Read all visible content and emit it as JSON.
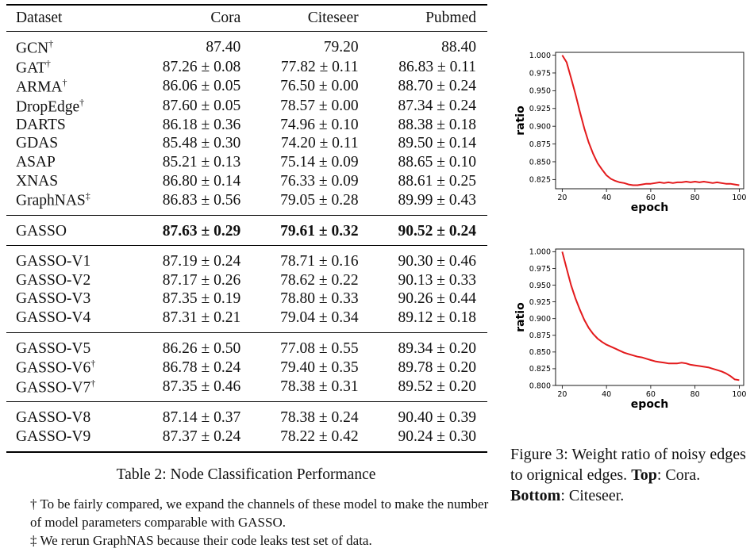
{
  "table": {
    "headers": [
      "Dataset",
      "Cora",
      "Citeseer",
      "Pubmed"
    ],
    "groups": [
      [
        {
          "name": "GCN",
          "mark": "†",
          "cora": "87.40",
          "citeseer": "79.20",
          "pubmed": "88.40"
        },
        {
          "name": "GAT",
          "mark": "†",
          "cora": "87.26 ± 0.08",
          "citeseer": "77.82 ± 0.11",
          "pubmed": "86.83 ± 0.11"
        },
        {
          "name": "ARMA",
          "mark": "†",
          "cora": "86.06 ± 0.05",
          "citeseer": "76.50 ± 0.00",
          "pubmed": "88.70 ± 0.24"
        },
        {
          "name": "DropEdge",
          "mark": "†",
          "cora": "87.60 ± 0.05",
          "citeseer": "78.57 ± 0.00",
          "pubmed": "87.34 ± 0.24"
        },
        {
          "name": "DARTS",
          "mark": "",
          "cora": "86.18 ± 0.36",
          "citeseer": "74.96 ± 0.10",
          "pubmed": "88.38 ± 0.18"
        },
        {
          "name": "GDAS",
          "mark": "",
          "cora": "85.48 ± 0.30",
          "citeseer": "74.20 ± 0.11",
          "pubmed": "89.50 ± 0.14"
        },
        {
          "name": "ASAP",
          "mark": "",
          "cora": "85.21 ± 0.13",
          "citeseer": "75.14 ± 0.09",
          "pubmed": "88.65 ± 0.10"
        },
        {
          "name": "XNAS",
          "mark": "",
          "cora": "86.80 ± 0.14",
          "citeseer": "76.33 ± 0.09",
          "pubmed": "88.61 ± 0.25"
        },
        {
          "name": "GraphNAS",
          "mark": "‡",
          "cora": "86.83 ± 0.56",
          "citeseer": "79.05 ± 0.28",
          "pubmed": "89.99 ± 0.43"
        }
      ],
      [
        {
          "name": "GASSO",
          "mark": "",
          "cora": "87.63 ± 0.29",
          "citeseer": "79.61 ± 0.32",
          "pubmed": "90.52 ± 0.24",
          "bold": true
        }
      ],
      [
        {
          "name": "GASSO-V1",
          "mark": "",
          "cora": "87.19 ± 0.24",
          "citeseer": "78.71 ± 0.16",
          "pubmed": "90.30 ± 0.46"
        },
        {
          "name": "GASSO-V2",
          "mark": "",
          "cora": "87.17 ± 0.26",
          "citeseer": "78.62 ± 0.22",
          "pubmed": "90.13 ± 0.33"
        },
        {
          "name": "GASSO-V3",
          "mark": "",
          "cora": "87.35 ± 0.19",
          "citeseer": "78.80 ± 0.33",
          "pubmed": "90.26 ± 0.44"
        },
        {
          "name": "GASSO-V4",
          "mark": "",
          "cora": "87.31 ± 0.21",
          "citeseer": "79.04 ± 0.34",
          "pubmed": "89.12 ± 0.18"
        }
      ],
      [
        {
          "name": "GASSO-V5",
          "mark": "",
          "cora": "86.26 ± 0.50",
          "citeseer": "77.08 ± 0.55",
          "pubmed": "89.34 ± 0.20"
        },
        {
          "name": "GASSO-V6",
          "mark": "†",
          "cora": "86.78 ± 0.24",
          "citeseer": "79.40 ± 0.35",
          "pubmed": "89.78 ± 0.20"
        },
        {
          "name": "GASSO-V7",
          "mark": "†",
          "cora": "87.35 ± 0.46",
          "citeseer": "78.38 ± 0.31",
          "pubmed": "89.52 ± 0.20"
        }
      ],
      [
        {
          "name": "GASSO-V8",
          "mark": "",
          "cora": "87.14 ± 0.37",
          "citeseer": "78.38 ± 0.24",
          "pubmed": "90.40 ± 0.39"
        },
        {
          "name": "GASSO-V9",
          "mark": "",
          "cora": "87.37 ± 0.24",
          "citeseer": "78.22 ± 0.42",
          "pubmed": "90.24 ± 0.30"
        }
      ]
    ],
    "caption": "Table 2: Node Classification Performance",
    "footnotes": [
      "† To be fairly compared, we expand the channels of these model to make the number of model parameters comparable with GASSO.",
      "‡ We rerun GraphNAS because their code leaks test set of data."
    ]
  },
  "figure": {
    "caption_pre": "Figure 3: Weight ratio of noisy edges to orignical edges. ",
    "caption_top_label": "Top",
    "caption_top_text": ": Cora. ",
    "caption_bottom_label": "Bottom",
    "caption_bottom_text": ": Citeseer."
  },
  "chart_data": [
    {
      "type": "line",
      "xlabel": "epoch",
      "ylabel": "ratio",
      "xlim": [
        17,
        102
      ],
      "ylim": [
        0.812,
        1.004
      ],
      "xticks": [
        20,
        40,
        60,
        80,
        100
      ],
      "yticks": [
        0.825,
        0.85,
        0.875,
        0.9,
        0.925,
        0.95,
        0.975,
        1.0
      ],
      "color": "#e31a1c",
      "x": [
        20,
        22,
        24,
        26,
        28,
        30,
        32,
        34,
        36,
        38,
        40,
        42,
        44,
        46,
        48,
        50,
        52,
        54,
        56,
        58,
        60,
        62,
        64,
        66,
        68,
        70,
        72,
        74,
        76,
        78,
        80,
        82,
        84,
        86,
        88,
        90,
        92,
        94,
        96,
        98,
        100
      ],
      "y": [
        1.0,
        0.99,
        0.968,
        0.945,
        0.92,
        0.897,
        0.877,
        0.861,
        0.848,
        0.839,
        0.831,
        0.826,
        0.823,
        0.821,
        0.82,
        0.818,
        0.817,
        0.817,
        0.818,
        0.819,
        0.819,
        0.82,
        0.821,
        0.82,
        0.821,
        0.82,
        0.821,
        0.821,
        0.822,
        0.821,
        0.822,
        0.821,
        0.822,
        0.821,
        0.82,
        0.821,
        0.82,
        0.819,
        0.819,
        0.818,
        0.817
      ]
    },
    {
      "type": "line",
      "xlabel": "epoch",
      "ylabel": "ratio",
      "xlim": [
        17,
        102
      ],
      "ylim": [
        0.8,
        1.004
      ],
      "xticks": [
        20,
        40,
        60,
        80,
        100
      ],
      "yticks": [
        0.8,
        0.825,
        0.85,
        0.875,
        0.9,
        0.925,
        0.95,
        0.975,
        1.0
      ],
      "color": "#e31a1c",
      "x": [
        20,
        22,
        24,
        26,
        28,
        30,
        32,
        34,
        36,
        38,
        40,
        42,
        44,
        46,
        48,
        50,
        52,
        54,
        56,
        58,
        60,
        62,
        64,
        66,
        68,
        70,
        72,
        74,
        76,
        78,
        80,
        82,
        84,
        86,
        88,
        90,
        92,
        94,
        96,
        98,
        100
      ],
      "y": [
        1.0,
        0.975,
        0.95,
        0.93,
        0.913,
        0.898,
        0.886,
        0.877,
        0.87,
        0.865,
        0.861,
        0.858,
        0.855,
        0.852,
        0.849,
        0.847,
        0.845,
        0.843,
        0.842,
        0.84,
        0.838,
        0.836,
        0.835,
        0.834,
        0.833,
        0.833,
        0.833,
        0.834,
        0.833,
        0.831,
        0.83,
        0.829,
        0.828,
        0.827,
        0.825,
        0.823,
        0.821,
        0.818,
        0.814,
        0.809,
        0.808
      ]
    }
  ]
}
